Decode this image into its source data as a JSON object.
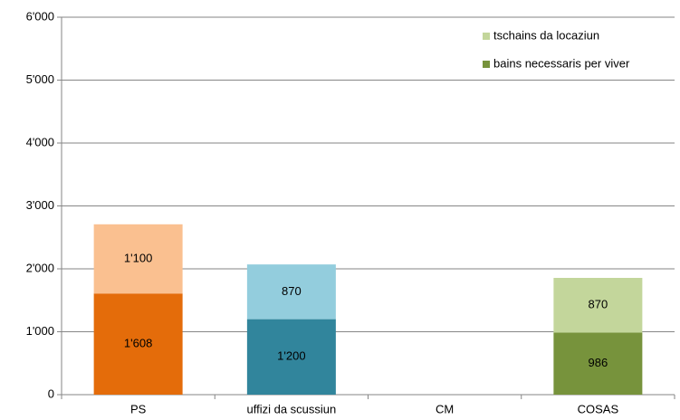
{
  "chart_data": {
    "type": "stacked_bar",
    "categories": [
      "PS",
      "uffizi da scussiun",
      "CM",
      "COSAS"
    ],
    "series": [
      {
        "name": "bains necessaris per viver",
        "color": "#77933c",
        "colors": [
          "#e46c0a",
          "#31859c",
          "#77933c",
          "#77933c"
        ],
        "values": [
          1608,
          1200,
          null,
          986
        ],
        "value_labels": [
          "1'608",
          "1'200",
          null,
          "986"
        ]
      },
      {
        "name": "tschains da locaziun",
        "color": "#c3d69b",
        "colors": [
          "#fac090",
          "#93cddd",
          "#c3d69b",
          "#c3d69b"
        ],
        "values": [
          1100,
          870,
          null,
          870
        ],
        "value_labels": [
          "1'100",
          "870",
          null,
          "870"
        ]
      }
    ],
    "ylim": [
      0,
      6000
    ],
    "yticks": [
      0,
      {
        "value": 1000,
        "label": "1'000"
      },
      {
        "value": 2000,
        "label": "2'000"
      },
      {
        "value": 3000,
        "label": "3'000"
      },
      {
        "value": 4000,
        "label": "4'000"
      },
      {
        "value": 5000,
        "label": "5'000"
      },
      {
        "value": 6000,
        "label": "6'000"
      }
    ],
    "grid": true,
    "legend": "top-right"
  }
}
